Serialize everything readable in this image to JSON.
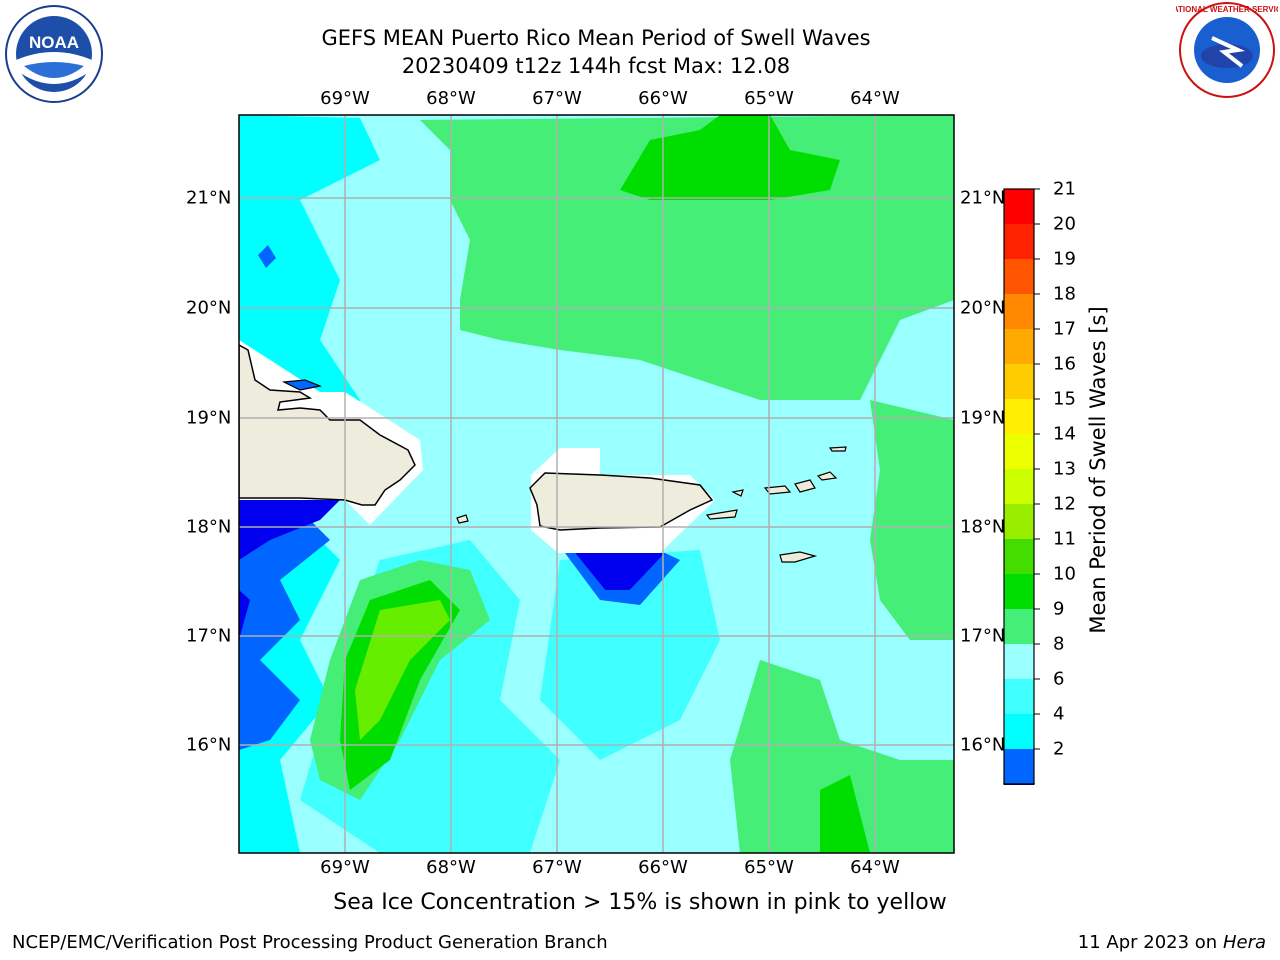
{
  "header": {
    "title_line1": "GEFS MEAN Puerto Rico Mean Period of Swell Waves",
    "title_line2": "20230409 t12z 144h fcst   Max: 12.08"
  },
  "logos": {
    "left": {
      "text": "NOAA",
      "ring_text": "NATIONAL OCEANIC AND ATMOSPHERIC ADMINISTRATION · U.S. DEPARTMENT OF COMMERCE"
    },
    "right": {
      "ring_text": "NATIONAL WEATHER SERVICE"
    }
  },
  "map": {
    "lon_labels": [
      "69°W",
      "68°W",
      "67°W",
      "66°W",
      "65°W",
      "64°W"
    ],
    "lat_labels": [
      "21°N",
      "20°N",
      "19°N",
      "18°N",
      "17°N",
      "16°N"
    ],
    "colors": {
      "land": "#eeecdc",
      "grid": "#b0b0b0",
      "level_2_4": "#0066ff",
      "level_below_2": "#0000ee",
      "level_4_6": "#00ffff",
      "level_6_8": "#40ffff",
      "level_8_9": "#99ffff",
      "level_9_10": "#44ee77",
      "level_10_11": "#00dd00",
      "level_11_12": "#44dd00",
      "level_12_13": "#88ee00"
    }
  },
  "colorbar": {
    "title": "Mean Period of Swell Waves [s]",
    "levels": [
      "21",
      "20",
      "19",
      "18",
      "17",
      "16",
      "15",
      "14",
      "13",
      "12",
      "11",
      "10",
      "9",
      "8",
      "6",
      "4",
      "2"
    ],
    "colors": [
      "#ff0000",
      "#ff2200",
      "#ff5500",
      "#ff8800",
      "#ffaa00",
      "#ffcc00",
      "#ffee00",
      "#eeff00",
      "#ccff00",
      "#99ee00",
      "#44dd00",
      "#00dd00",
      "#44ee77",
      "#99ffff",
      "#40ffff",
      "#00ffff",
      "#0066ff"
    ],
    "extend_color": "#0000ee"
  },
  "caption": "Sea Ice Concentration > 15% is shown in pink to yellow",
  "footer": {
    "left": "NCEP/EMC/Verification Post Processing Product Generation Branch",
    "right_date": "11 Apr 2023 on ",
    "right_machine": "Hera"
  }
}
